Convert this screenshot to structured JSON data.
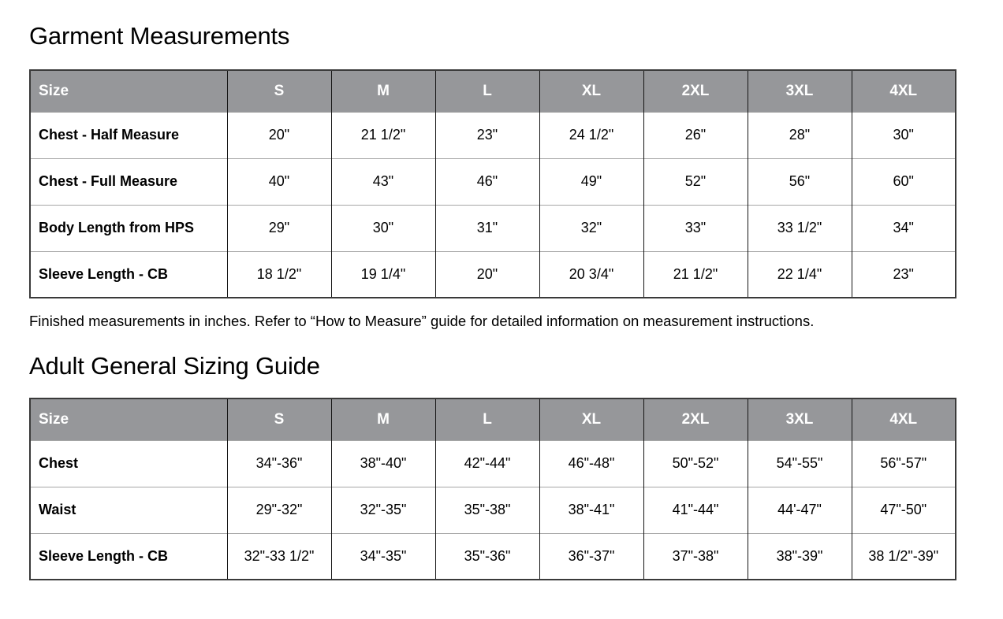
{
  "colors": {
    "header_bg": "#96979a",
    "header_text": "#ffffff",
    "cell_text": "#000000",
    "vertical_border": "#151515",
    "horizontal_border": "#a6a6a6",
    "outer_border": "#3a3a3a",
    "page_bg": "#ffffff"
  },
  "garment_table": {
    "title": "Garment Measurements",
    "columns": [
      "Size",
      "S",
      "M",
      "L",
      "XL",
      "2XL",
      "3XL",
      "4XL"
    ],
    "rows": [
      {
        "label": "Chest - Half Measure",
        "values": [
          "20\"",
          "21 1/2\"",
          "23\"",
          "24 1/2\"",
          "26\"",
          "28\"",
          "30\""
        ]
      },
      {
        "label": "Chest - Full Measure",
        "values": [
          "40\"",
          "43\"",
          "46\"",
          "49\"",
          "52\"",
          "56\"",
          "60\""
        ]
      },
      {
        "label": "Body Length from HPS",
        "values": [
          "29\"",
          "30\"",
          "31\"",
          "32\"",
          "33\"",
          "33 1/2\"",
          "34\""
        ]
      },
      {
        "label": "Sleeve Length - CB",
        "values": [
          "18 1/2\"",
          "19 1/4\"",
          "20\"",
          "20 3/4\"",
          "21 1/2\"",
          "22 1/4\"",
          "23\""
        ]
      }
    ],
    "note": "Finished measurements in inches. Refer to “How to Measure” guide for detailed information on measurement instructions."
  },
  "sizing_table": {
    "title": "Adult General Sizing Guide",
    "columns": [
      "Size",
      "S",
      "M",
      "L",
      "XL",
      "2XL",
      "3XL",
      "4XL"
    ],
    "rows": [
      {
        "label": "Chest",
        "values": [
          "34\"-36\"",
          "38\"-40\"",
          "42\"-44\"",
          "46\"-48\"",
          "50\"-52\"",
          "54\"-55\"",
          "56\"-57\""
        ]
      },
      {
        "label": "Waist",
        "values": [
          "29\"-32\"",
          "32\"-35\"",
          "35\"-38\"",
          "38\"-41\"",
          "41\"-44\"",
          "44'-47\"",
          "47\"-50\""
        ]
      },
      {
        "label": "Sleeve Length - CB",
        "values": [
          "32\"-33 1/2\"",
          "34\"-35\"",
          "35\"-36\"",
          "36\"-37\"",
          "37\"-38\"",
          "38\"-39\"",
          "38 1/2\"-39\""
        ]
      }
    ]
  }
}
